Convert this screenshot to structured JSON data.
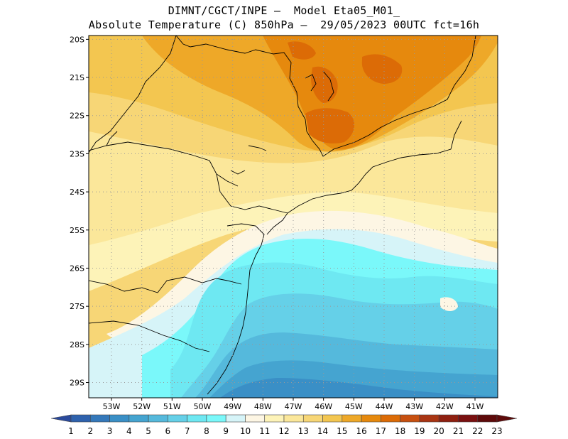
{
  "header": {
    "title_line1": "DIMNT/CGCT/INPE –  Model Eta05_M01_",
    "title_line2": "Absolute Temperature (C) 850hPa –  29/05/2023 00UTC fct=16h"
  },
  "map": {
    "lat_labels": [
      "20S",
      "21S",
      "22S",
      "23S",
      "24S",
      "25S",
      "26S",
      "27S",
      "28S",
      "29S"
    ],
    "lon_labels": [
      "53W",
      "52W",
      "51W",
      "50W",
      "49W",
      "48W",
      "47W",
      "46W",
      "45W",
      "44W",
      "43W",
      "42W",
      "41W"
    ],
    "lat_values": [
      20,
      21,
      22,
      23,
      24,
      25,
      26,
      27,
      28,
      29
    ],
    "lon_values": [
      53,
      52,
      51,
      50,
      49,
      48,
      47,
      46,
      45,
      44,
      43,
      42,
      41
    ],
    "lat_range": [
      19.9,
      29.4
    ],
    "lon_range": [
      53.75,
      40.25
    ]
  },
  "colorbar": {
    "labels": [
      "1",
      "2",
      "3",
      "4",
      "5",
      "6",
      "7",
      "8",
      "9",
      "10",
      "11",
      "12",
      "13",
      "14",
      "15",
      "16",
      "17",
      "18",
      "19",
      "20",
      "21",
      "22",
      "23"
    ],
    "colors": [
      "#2a4a9c",
      "#2e62ad",
      "#3478ba",
      "#3a8fc6",
      "#45a4d0",
      "#55b9dc",
      "#65d0e8",
      "#6ee8f2",
      "#7af8fa",
      "#d6f4f8",
      "#fdf6e4",
      "#fdf3b8",
      "#fbe79a",
      "#f7d676",
      "#f3c650",
      "#eea828",
      "#e6890d",
      "#dc6b06",
      "#c75010",
      "#a93513",
      "#8f2010",
      "#7a1010",
      "#5e0a0a"
    ]
  }
}
